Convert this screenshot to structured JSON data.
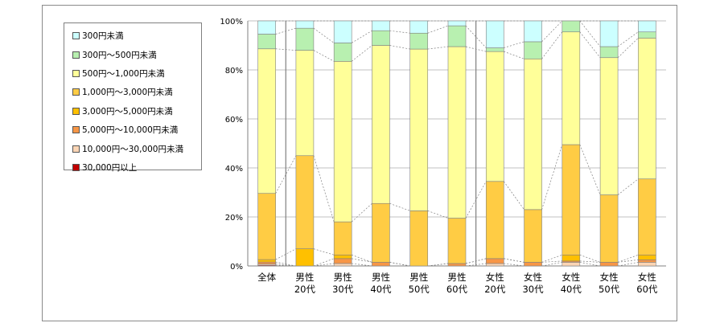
{
  "chart_data": {
    "type": "bar",
    "stacked": true,
    "percent_stacked": true,
    "categories": [
      [
        "全体"
      ],
      [
        "男性",
        "20代"
      ],
      [
        "男性",
        "30代"
      ],
      [
        "男性",
        "40代"
      ],
      [
        "男性",
        "50代"
      ],
      [
        "男性",
        "60代"
      ],
      [
        "女性",
        "20代"
      ],
      [
        "女性",
        "30代"
      ],
      [
        "女性",
        "40代"
      ],
      [
        "女性",
        "50代"
      ],
      [
        "女性",
        "60代"
      ]
    ],
    "series": [
      {
        "name": "30,000円以上",
        "color": "#c00000",
        "values": [
          0.3,
          0.0,
          0.0,
          0.0,
          0.0,
          0.0,
          0.0,
          0.0,
          0.0,
          0.0,
          0.0
        ]
      },
      {
        "name": "10,000円～30,000円未満",
        "color": "#fbd5b5",
        "values": [
          0.5,
          0.0,
          1.0,
          0.0,
          0.0,
          0.0,
          1.0,
          0.0,
          1.5,
          0.0,
          1.5
        ]
      },
      {
        "name": "5,000円～10,000円未満",
        "color": "#f79646",
        "values": [
          0.8,
          0.0,
          2.0,
          1.5,
          0.0,
          1.0,
          2.0,
          1.5,
          0.5,
          1.5,
          1.0
        ]
      },
      {
        "name": "3,000円～5,000円未満",
        "color": "#ffc000",
        "values": [
          1.0,
          7.0,
          1.5,
          0.0,
          0.0,
          0.0,
          0.0,
          0.0,
          2.5,
          0.0,
          2.0
        ]
      },
      {
        "name": "1,000円～3,000円未満",
        "color": "#ffcc44",
        "values": [
          27.0,
          38.0,
          13.5,
          24.0,
          22.5,
          18.5,
          31.5,
          21.5,
          45.0,
          27.5,
          31.0
        ]
      },
      {
        "name": "500円～1,000円未満",
        "color": "#ffff99",
        "values": [
          59.0,
          43.0,
          65.5,
          64.5,
          66.0,
          70.0,
          53.0,
          61.5,
          46.0,
          56.0,
          57.5
        ]
      },
      {
        "name": "300円～500円未満",
        "color": "#b8f0b0",
        "values": [
          6.0,
          9.0,
          7.5,
          6.0,
          6.5,
          8.5,
          1.5,
          7.0,
          4.5,
          4.5,
          2.5
        ]
      },
      {
        "name": "300円未満",
        "color": "#ccffff",
        "values": [
          5.4,
          3.0,
          9.0,
          4.0,
          5.0,
          2.0,
          11.0,
          8.5,
          0.0,
          10.5,
          4.5
        ]
      }
    ],
    "yticks": [
      "0%",
      "20%",
      "40%",
      "60%",
      "80%",
      "100%"
    ],
    "ylim": [
      0,
      100
    ],
    "group_separators_after": [
      0,
      5
    ],
    "series_lines": true,
    "legend": {
      "placement": "left",
      "order": [
        "300円未満",
        "300円～500円未満",
        "500円～1,000円未満",
        "1,000円～3,000円未満",
        "3,000円～5,000円未満",
        "5,000円～10,000円未満",
        "10,000円～30,000円未満",
        "30,000円以上"
      ]
    },
    "gridlines": true
  },
  "colors": {
    "grid": "#c0c0c0",
    "bar_outline": "#808080",
    "series_line": "#808080",
    "separator": "#808080"
  }
}
